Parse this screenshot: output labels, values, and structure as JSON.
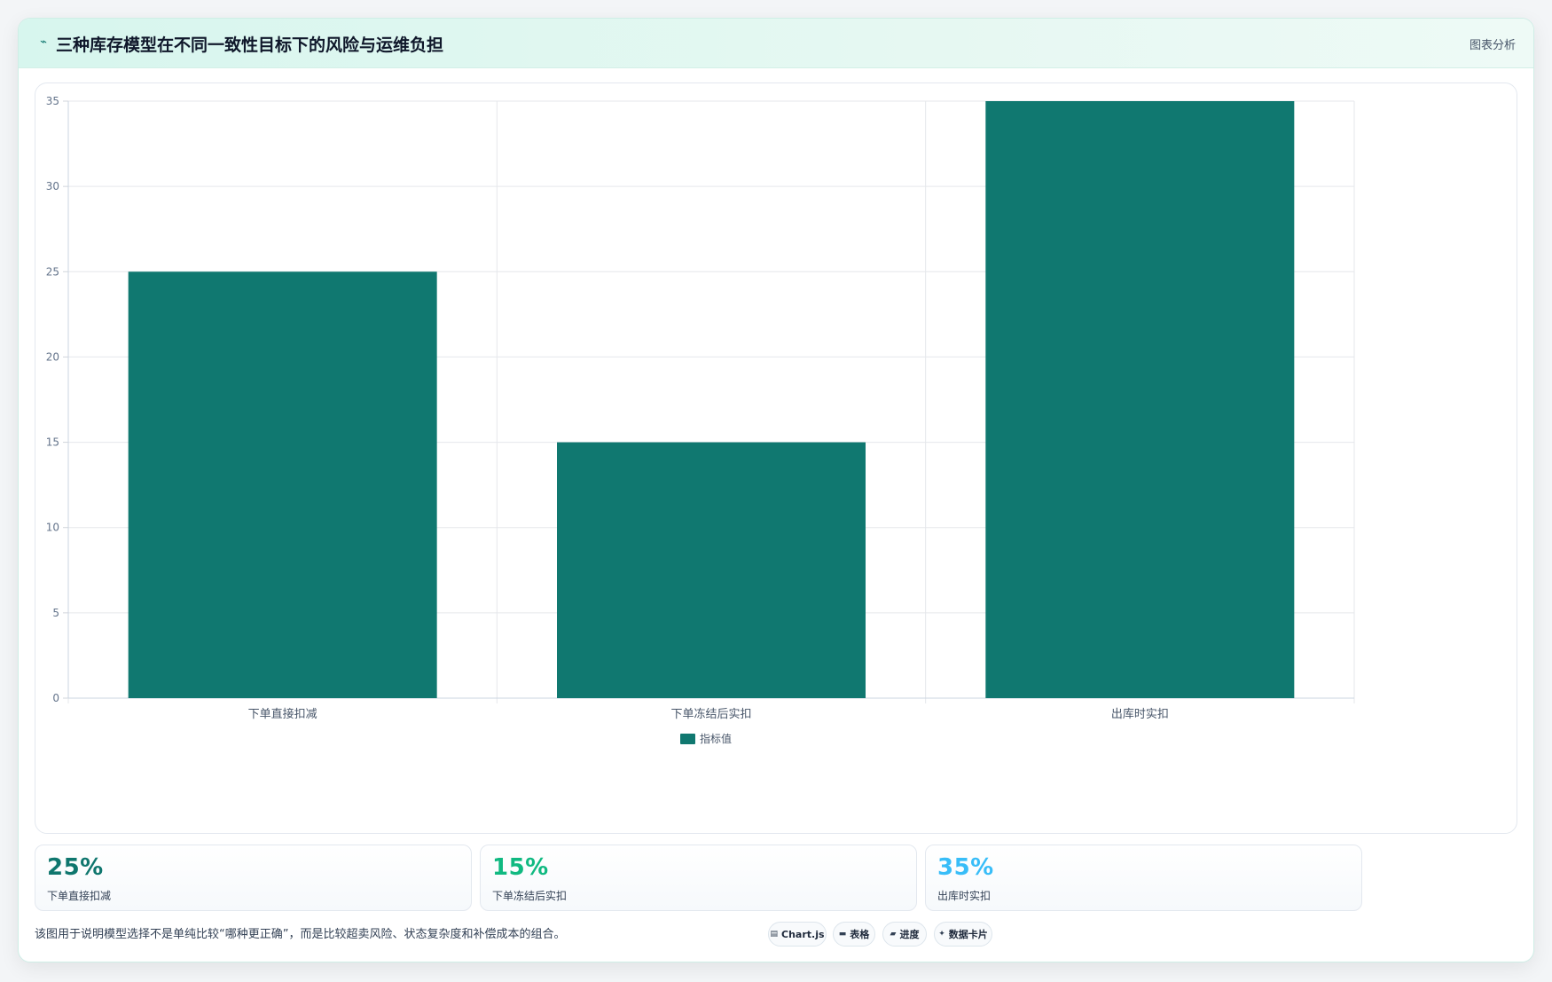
{
  "header": {
    "title": "三种库存模型在不同一致性目标下的风险与运维负担",
    "action_label": "图表分析",
    "icon": "trend-icon"
  },
  "chart_data": {
    "type": "bar",
    "categories": [
      "下单直接扣减",
      "下单冻结后实扣",
      "出库时实扣"
    ],
    "series": [
      {
        "name": "指标值",
        "values": [
          25,
          15,
          35
        ],
        "color": "#107870"
      }
    ],
    "ylim": [
      0,
      35
    ],
    "yticks": [
      0,
      5,
      10,
      15,
      20,
      25,
      30,
      35
    ],
    "grid": true,
    "legend": "bottom"
  },
  "stats": [
    {
      "value": "25%",
      "label": "下单直接扣减",
      "color": "#0f766e"
    },
    {
      "value": "15%",
      "label": "下单冻结后实扣",
      "color": "#10b981"
    },
    {
      "value": "35%",
      "label": "出库时实扣",
      "color": "#38bdf8"
    }
  ],
  "footer": {
    "note": "该图用于说明模型选择不是单纯比较“哪种更正确”，而是比较超卖风险、状态复杂度和补偿成本的组合。",
    "chips": [
      {
        "icon": "chart-icon",
        "label": "Chart.js"
      },
      {
        "icon": "table-icon",
        "label": "表格"
      },
      {
        "icon": "progress-icon",
        "label": "进度"
      },
      {
        "icon": "sparkle-icon",
        "label": "数据卡片"
      }
    ]
  }
}
